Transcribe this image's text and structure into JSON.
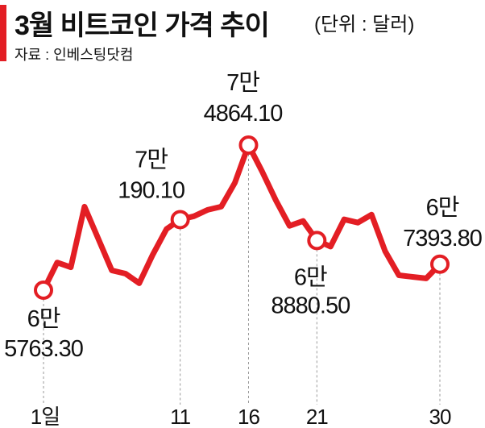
{
  "title": "3월 비트코인 가격 추이",
  "unit": "(단위 : 달러)",
  "source": "자료 : 인베스팅닷컴",
  "colors": {
    "accent": "#e31e24",
    "line": "#e31e24",
    "marker_fill": "#ffffff",
    "guide": "#999999"
  },
  "chart_data": {
    "type": "line",
    "title": "3월 비트코인 가격 추이",
    "xlabel": "",
    "ylabel": "",
    "x_ticks": [
      {
        "day": 1,
        "label": "1일"
      },
      {
        "day": 11,
        "label": "11"
      },
      {
        "day": 16,
        "label": "16"
      },
      {
        "day": 21,
        "label": "21"
      },
      {
        "day": 30,
        "label": "30"
      }
    ],
    "series": [
      {
        "name": "",
        "points": [
          [
            1,
            65763.3
          ],
          [
            2,
            67500
          ],
          [
            3,
            67200
          ],
          [
            4,
            71000
          ],
          [
            5,
            69000
          ],
          [
            6,
            67000
          ],
          [
            7,
            66800
          ],
          [
            8,
            66200
          ],
          [
            9,
            68000
          ],
          [
            10,
            69600
          ],
          [
            11,
            70190.1
          ],
          [
            12,
            70400
          ],
          [
            13,
            70800
          ],
          [
            14,
            71000
          ],
          [
            15,
            72500
          ],
          [
            16,
            74864.1
          ],
          [
            17,
            73200
          ],
          [
            18,
            71400
          ],
          [
            19,
            69800
          ],
          [
            20,
            70100
          ],
          [
            21,
            68880.5
          ],
          [
            22,
            68500
          ],
          [
            23,
            70200
          ],
          [
            24,
            70000
          ],
          [
            25,
            70500
          ],
          [
            26,
            68200
          ],
          [
            27,
            66700
          ],
          [
            28,
            66600
          ],
          [
            29,
            66500
          ],
          [
            30,
            67393.8
          ]
        ]
      }
    ],
    "annotations": [
      {
        "day": 1,
        "value": 65763.3,
        "line1": "6만",
        "line2": "5763.30"
      },
      {
        "day": 11,
        "value": 70190.1,
        "line1": "7만",
        "line2": "190.10"
      },
      {
        "day": 16,
        "value": 74864.1,
        "line1": "7만",
        "line2": "4864.10"
      },
      {
        "day": 21,
        "value": 68880.5,
        "line1": "6만",
        "line2": "8880.50"
      },
      {
        "day": 30,
        "value": 67393.8,
        "line1": "6만",
        "line2": "7393.80"
      }
    ]
  }
}
